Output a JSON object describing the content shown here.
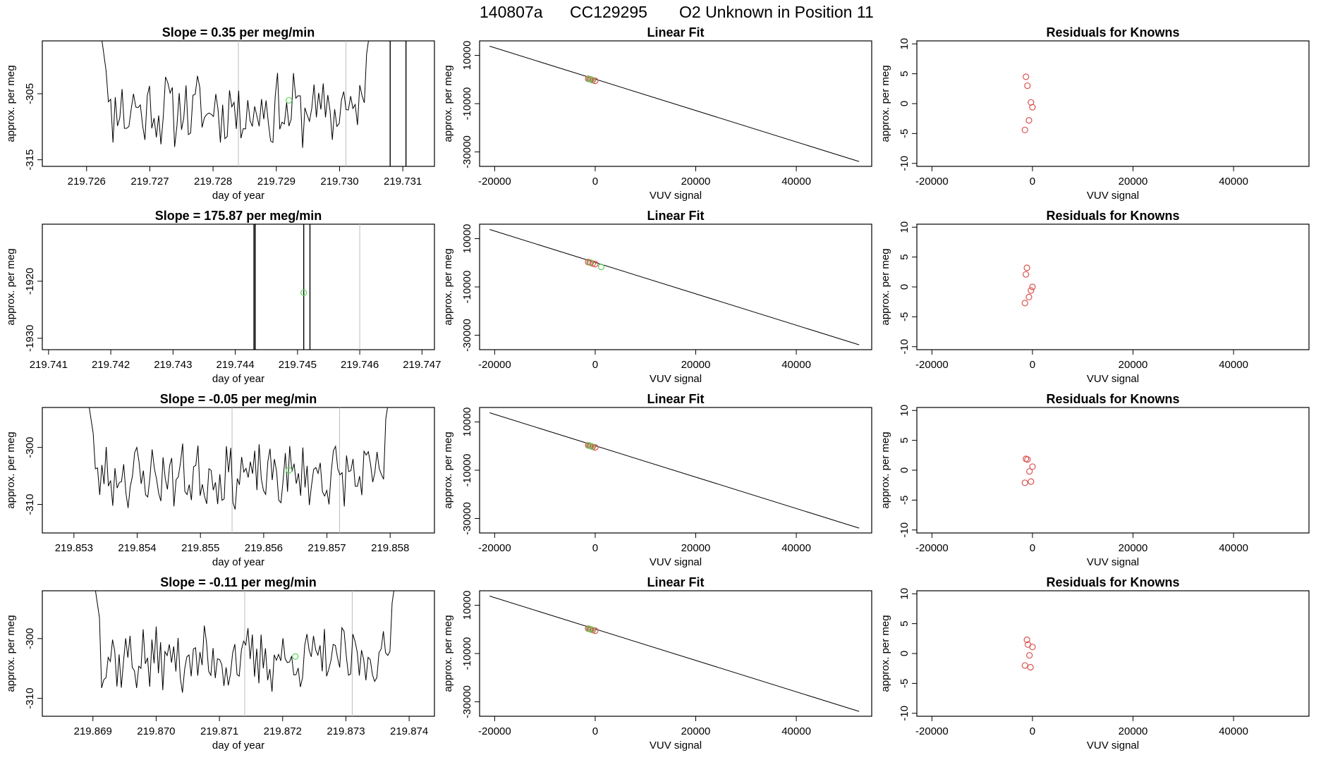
{
  "figure": {
    "title_id": "140807a",
    "title_cyl": "CC129295",
    "title_desc": "O2 Unknown in Position  11"
  },
  "chart_data": [
    {
      "type": "line",
      "panel": "time-series-row-1",
      "title": "Slope =  0.35  per meg/min",
      "xlabel": "day of year",
      "ylabel": "approx. per meg",
      "xlim": [
        219.7253,
        219.7315
      ],
      "ylim": [
        -316,
        -297
      ],
      "xticks": [
        "219.726",
        "219.727",
        "219.728",
        "219.729",
        "219.730",
        "219.731"
      ],
      "yticks": [
        "-305",
        "-315"
      ],
      "vlines_gray": [
        219.7284,
        219.7301
      ],
      "vlines_black": [
        219.7308,
        219.73105
      ],
      "marker_green": [
        219.7292,
        -306
      ],
      "wave": {
        "x_start": 219.7262,
        "x_end": 219.7305,
        "mean": -307.5,
        "amp": 4.5,
        "n": 120,
        "seed": 11
      }
    },
    {
      "type": "bar",
      "panel": "linear-fit-row-1",
      "title": "Linear Fit",
      "xlabel": "VUV signal",
      "ylabel": "approx. per meg",
      "xlim": [
        -23000,
        55000
      ],
      "ylim": [
        -36000,
        16000
      ],
      "xticks": [
        "-20000",
        "0",
        "20000",
        "40000"
      ],
      "yticks": [
        "10000",
        "-10000",
        "-30000"
      ],
      "fit_line": [
        [
          -21000,
          13800
        ],
        [
          52500,
          -34000
        ]
      ],
      "red_points": [
        [
          -1400,
          300
        ],
        [
          -900,
          0
        ],
        [
          -500,
          -300
        ],
        [
          0,
          -550
        ],
        [
          -1100,
          150
        ]
      ],
      "green_points": [
        [
          -1200,
          200
        ],
        [
          -700,
          -100
        ]
      ]
    },
    {
      "type": "scatter",
      "panel": "residuals-row-1",
      "title": "Residuals for Knowns",
      "xlabel": "VUV signal",
      "ylabel": "approx. per meg",
      "xlim": [
        -23000,
        55000
      ],
      "ylim": [
        -10.5,
        10.5
      ],
      "xticks": [
        "-20000",
        "0",
        "20000",
        "40000"
      ],
      "yticks": [
        "10",
        "5",
        "0",
        "-5",
        "-10"
      ],
      "points": [
        [
          -1300,
          4.5
        ],
        [
          -1000,
          3.0
        ],
        [
          -300,
          0.2
        ],
        [
          0,
          -0.6
        ],
        [
          -700,
          -2.8
        ],
        [
          -1500,
          -4.4
        ]
      ]
    },
    {
      "type": "line",
      "panel": "time-series-row-2",
      "title": "Slope =  175.87  per meg/min",
      "xlabel": "day of year",
      "ylabel": "approx. per meg",
      "xlim": [
        219.7409,
        219.7472
      ],
      "ylim": [
        -1932,
        -1910
      ],
      "xticks": [
        "219.741",
        "219.742",
        "219.743",
        "219.744",
        "219.745",
        "219.746",
        "219.747"
      ],
      "yticks": [
        "-1920",
        "-1930"
      ],
      "vlines_gray": [
        219.746
      ],
      "vlines_black": [
        219.7443,
        219.74432,
        219.7451,
        219.7452
      ],
      "marker_green": [
        219.7451,
        -1922
      ],
      "wave": null
    },
    {
      "type": "scatter",
      "panel": "linear-fit-row-2",
      "title": "Linear Fit",
      "xlabel": "VUV signal",
      "ylabel": "approx. per meg",
      "xlim": [
        -23000,
        55000
      ],
      "ylim": [
        -36000,
        16000
      ],
      "xticks": [
        "-20000",
        "0",
        "20000",
        "40000"
      ],
      "yticks": [
        "10000",
        "-10000",
        "-30000"
      ],
      "fit_line": [
        [
          -21000,
          13800
        ],
        [
          52500,
          -34000
        ]
      ],
      "red_points": [
        [
          -1400,
          300
        ],
        [
          -900,
          0
        ],
        [
          -500,
          -300
        ],
        [
          0,
          -550
        ],
        [
          -1100,
          150
        ]
      ],
      "green_points": [
        [
          -1000,
          100
        ],
        [
          1200,
          -1700
        ]
      ]
    },
    {
      "type": "scatter",
      "panel": "residuals-row-2",
      "title": "Residuals for Knowns",
      "xlabel": "VUV signal",
      "ylabel": "approx. per meg",
      "xlim": [
        -23000,
        55000
      ],
      "ylim": [
        -10.5,
        10.5
      ],
      "xticks": [
        "-20000",
        "0",
        "20000",
        "40000"
      ],
      "yticks": [
        "10",
        "5",
        "0",
        "-5",
        "-10"
      ],
      "points": [
        [
          -1100,
          3.2
        ],
        [
          -1300,
          2.1
        ],
        [
          0,
          0.0
        ],
        [
          -300,
          -0.6
        ],
        [
          -700,
          -1.7
        ],
        [
          -1500,
          -2.7
        ]
      ]
    },
    {
      "type": "line",
      "panel": "time-series-row-3",
      "title": "Slope =  -0.05  per meg/min",
      "xlabel": "day of year",
      "ylabel": "approx. per meg",
      "xlim": [
        219.8525,
        219.8587
      ],
      "ylim": [
        -315,
        -293
      ],
      "xticks": [
        "219.853",
        "219.854",
        "219.855",
        "219.856",
        "219.857",
        "219.858"
      ],
      "yticks": [
        "-300",
        "-310"
      ],
      "vlines_gray": [
        219.8555,
        219.8572
      ],
      "vlines_black": [],
      "marker_green": [
        219.8564,
        -304
      ],
      "wave": {
        "x_start": 219.8532,
        "x_end": 219.858,
        "mean": -305,
        "amp": 4.5,
        "n": 140,
        "seed": 23
      }
    },
    {
      "type": "line",
      "panel": "linear-fit-row-3",
      "title": "Linear Fit",
      "xlabel": "VUV signal",
      "ylabel": "approx. per meg",
      "xlim": [
        -23000,
        55000
      ],
      "ylim": [
        -36000,
        16000
      ],
      "xticks": [
        "-20000",
        "0",
        "20000",
        "40000"
      ],
      "yticks": [
        "10000",
        "-10000",
        "-30000"
      ],
      "fit_line": [
        [
          -21000,
          13800
        ],
        [
          52500,
          -34000
        ]
      ],
      "red_points": [
        [
          -1400,
          300
        ],
        [
          -900,
          0
        ],
        [
          -500,
          -300
        ],
        [
          0,
          -550
        ],
        [
          -1100,
          150
        ]
      ],
      "green_points": [
        [
          -1200,
          200
        ],
        [
          -700,
          -100
        ]
      ]
    },
    {
      "type": "scatter",
      "panel": "residuals-row-3",
      "title": "Residuals for Knowns",
      "xlabel": "VUV signal",
      "ylabel": "approx. per meg",
      "xlim": [
        -23000,
        55000
      ],
      "ylim": [
        -10.5,
        10.5
      ],
      "xticks": [
        "-20000",
        "0",
        "20000",
        "40000"
      ],
      "yticks": [
        "10",
        "5",
        "0",
        "-5",
        "-10"
      ],
      "points": [
        [
          -1300,
          1.9
        ],
        [
          -1000,
          1.8
        ],
        [
          0,
          0.6
        ],
        [
          -600,
          -0.2
        ],
        [
          -300,
          -1.9
        ],
        [
          -1500,
          -2.1
        ]
      ]
    },
    {
      "type": "line",
      "panel": "time-series-row-4",
      "title": "Slope =  -0.11  per meg/min",
      "xlabel": "day of year",
      "ylabel": "approx. per meg",
      "xlim": [
        219.8682,
        219.8744
      ],
      "ylim": [
        -313,
        -292
      ],
      "xticks": [
        "219.869",
        "219.870",
        "219.871",
        "219.872",
        "219.873",
        "219.874"
      ],
      "yticks": [
        "-300",
        "-310"
      ],
      "vlines_gray": [
        219.8714,
        219.8731
      ],
      "vlines_black": [],
      "marker_green": [
        219.8722,
        -303
      ],
      "wave": {
        "x_start": 219.869,
        "x_end": 219.8738,
        "mean": -303.5,
        "amp": 4.5,
        "n": 140,
        "seed": 37
      }
    },
    {
      "type": "line",
      "panel": "linear-fit-row-4",
      "title": "Linear Fit",
      "xlabel": "VUV signal",
      "ylabel": "approx. per meg",
      "xlim": [
        -23000,
        55000
      ],
      "ylim": [
        -36000,
        16000
      ],
      "xticks": [
        "-20000",
        "0",
        "20000",
        "40000"
      ],
      "yticks": [
        "10000",
        "-10000",
        "-30000"
      ],
      "fit_line": [
        [
          -21000,
          13800
        ],
        [
          52500,
          -34000
        ]
      ],
      "red_points": [
        [
          -1400,
          300
        ],
        [
          -900,
          0
        ],
        [
          -500,
          -300
        ],
        [
          0,
          -550
        ],
        [
          -1100,
          150
        ]
      ],
      "green_points": [
        [
          -1200,
          200
        ],
        [
          -700,
          -100
        ]
      ]
    },
    {
      "type": "scatter",
      "panel": "residuals-row-4",
      "title": "Residuals for Knowns",
      "xlabel": "VUV signal",
      "ylabel": "approx. per meg",
      "xlim": [
        -23000,
        55000
      ],
      "ylim": [
        -10.5,
        10.5
      ],
      "xticks": [
        "-20000",
        "0",
        "20000",
        "40000"
      ],
      "yticks": [
        "10",
        "5",
        "0",
        "-5",
        "-10"
      ],
      "points": [
        [
          -1100,
          2.3
        ],
        [
          -900,
          1.5
        ],
        [
          0,
          1.1
        ],
        [
          -600,
          -0.3
        ],
        [
          -1500,
          -2.0
        ],
        [
          -400,
          -2.3
        ]
      ]
    }
  ]
}
